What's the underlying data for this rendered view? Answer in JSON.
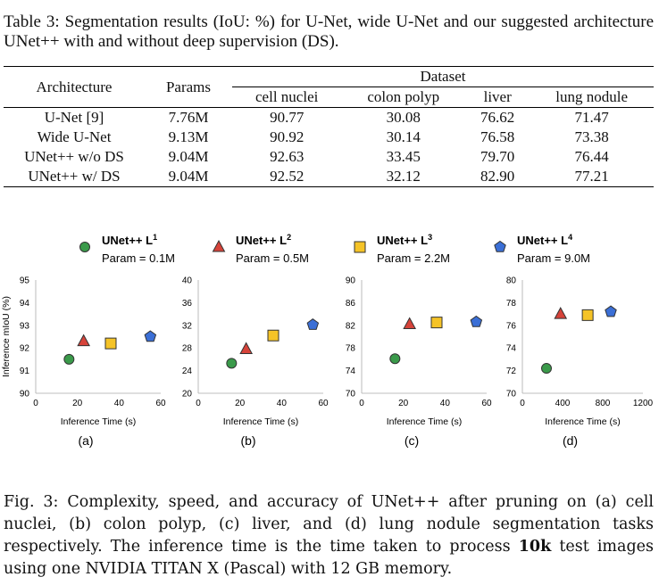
{
  "table": {
    "caption": "Table 3: Segmentation results (IoU: %) for U-Net, wide U-Net and our suggested architecture UNet++ with and without deep supervision (DS).",
    "header": {
      "architecture": "Architecture",
      "params": "Params",
      "dataset": "Dataset",
      "datasets": [
        "cell nuclei",
        "colon polyp",
        "liver",
        "lung nodule"
      ]
    },
    "rows": [
      {
        "arch": "U-Net [9]",
        "params": "7.76M",
        "values": [
          "90.77",
          "30.08",
          "76.62",
          "71.47"
        ]
      },
      {
        "arch": "Wide U-Net",
        "params": "9.13M",
        "values": [
          "90.92",
          "30.14",
          "76.58",
          "73.38"
        ]
      },
      {
        "arch": "UNet++ w/o DS",
        "params": "9.04M",
        "values": [
          "92.63",
          "33.45",
          "79.70",
          "76.44"
        ]
      },
      {
        "arch": "UNet++ w/ DS",
        "params": "9.04M",
        "values": [
          "92.52",
          "32.12",
          "82.90",
          "77.21"
        ]
      }
    ]
  },
  "legend": [
    {
      "name": "UNet++ L",
      "sup": "1",
      "param": "Param = 0.1M",
      "shape": "circle",
      "color": "#3a9a4a"
    },
    {
      "name": "UNet++ L",
      "sup": "2",
      "param": "Param = 0.5M",
      "shape": "triangle",
      "color": "#d6433a"
    },
    {
      "name": "UNet++ L",
      "sup": "3",
      "param": "Param = 2.2M",
      "shape": "square",
      "color": "#f5c327"
    },
    {
      "name": "UNet++ L",
      "sup": "4",
      "param": "Param = 9.0M",
      "shape": "pentagon",
      "color": "#3b6fd6"
    }
  ],
  "chart_data": [
    {
      "type": "scatter",
      "label": "(a)",
      "xlabel": "Inference Time (s)",
      "ylabel": "Inference mIoU (%)",
      "xlim": [
        0,
        60
      ],
      "ylim": [
        90,
        95
      ],
      "xticks": [
        0,
        20,
        40,
        60
      ],
      "yticks": [
        90,
        91,
        92,
        93,
        94,
        95
      ],
      "points": [
        {
          "x": 16,
          "y": 91.5
        },
        {
          "x": 23,
          "y": 92.3
        },
        {
          "x": 36,
          "y": 92.2
        },
        {
          "x": 55,
          "y": 92.5
        }
      ]
    },
    {
      "type": "scatter",
      "label": "(b)",
      "xlabel": "Inference Time (s)",
      "ylabel": "",
      "xlim": [
        0,
        60
      ],
      "ylim": [
        20,
        40
      ],
      "xticks": [
        0,
        20,
        40,
        60
      ],
      "yticks": [
        20,
        24,
        28,
        32,
        36,
        40
      ],
      "points": [
        {
          "x": 16,
          "y": 25.3
        },
        {
          "x": 23,
          "y": 27.8
        },
        {
          "x": 36,
          "y": 30.2
        },
        {
          "x": 55,
          "y": 32.1
        }
      ]
    },
    {
      "type": "scatter",
      "label": "(c)",
      "xlabel": "Inference Time (s)",
      "ylabel": "",
      "xlim": [
        0,
        60
      ],
      "ylim": [
        70,
        90
      ],
      "xticks": [
        0,
        20,
        40,
        60
      ],
      "yticks": [
        70,
        74,
        78,
        82,
        86,
        90
      ],
      "points": [
        {
          "x": 16,
          "y": 76.1
        },
        {
          "x": 23,
          "y": 82.2
        },
        {
          "x": 36,
          "y": 82.5
        },
        {
          "x": 55,
          "y": 82.6
        }
      ]
    },
    {
      "type": "scatter",
      "label": "(d)",
      "xlabel": "Inference Time (s)",
      "ylabel": "",
      "xlim": [
        0,
        1200
      ],
      "ylim": [
        70,
        80
      ],
      "xticks": [
        0,
        400,
        800,
        1200
      ],
      "yticks": [
        70,
        72,
        74,
        76,
        78,
        80
      ],
      "points": [
        {
          "x": 240,
          "y": 72.2
        },
        {
          "x": 380,
          "y": 77.0
        },
        {
          "x": 650,
          "y": 76.9
        },
        {
          "x": 880,
          "y": 77.2
        }
      ]
    }
  ],
  "figure_caption": {
    "prefix": "Fig. 3: Complexity, speed, and accuracy of UNet++ after pruning on (a) cell nuclei, (b) colon polyp, (c) liver, and (d) lung nodule segmentation tasks respectively. The inference time is the time taken to process ",
    "bold": "10k",
    "suffix": " test images using one NVIDIA TITAN X (Pascal) with 12 GB memory."
  }
}
